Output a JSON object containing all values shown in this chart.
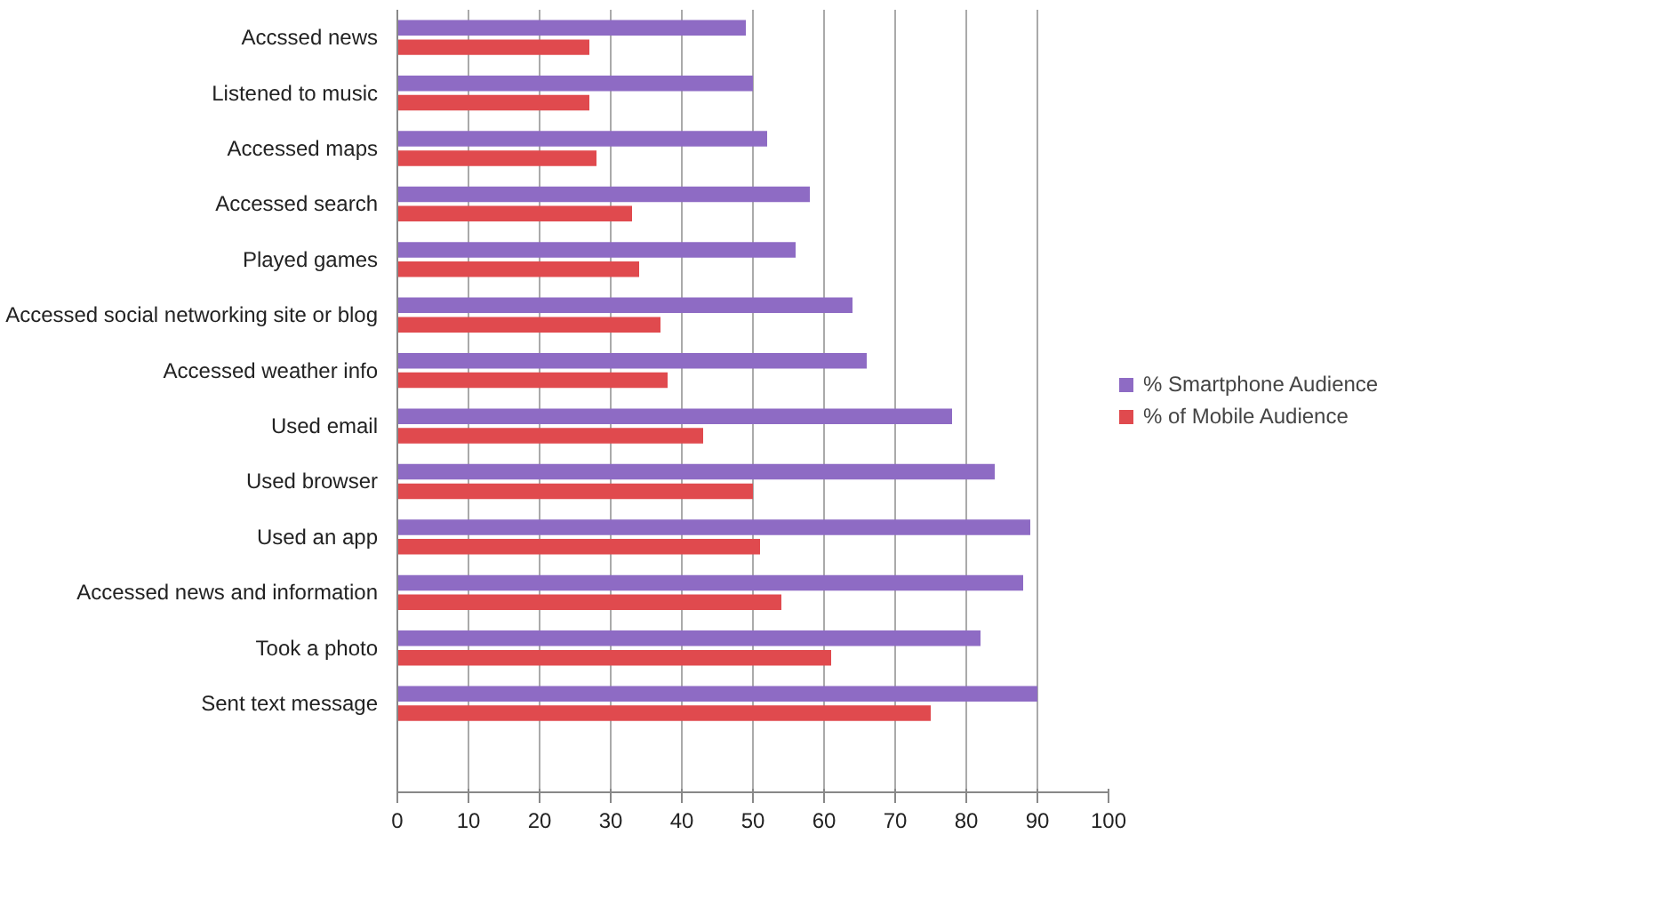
{
  "chart_data": {
    "type": "bar",
    "orientation": "horizontal",
    "categories": [
      "Accssed news",
      "Listened to music",
      "Accessed maps",
      "Accessed search",
      "Played games",
      "Accessed social networking site or blog",
      "Accessed weather info",
      "Used email",
      "Used browser",
      "Used an app",
      "Accessed news and information",
      "Took a photo",
      "Sent text message"
    ],
    "series": [
      {
        "name": "% Smartphone Audience",
        "color": "#8e6bc4",
        "values": [
          49,
          50,
          52,
          58,
          56,
          64,
          66,
          78,
          84,
          89,
          88,
          82,
          90
        ]
      },
      {
        "name": "% of Mobile Audience",
        "color": "#e04a4e",
        "values": [
          27,
          27,
          28,
          33,
          34,
          37,
          38,
          43,
          50,
          51,
          54,
          61,
          75
        ]
      }
    ],
    "xlim": [
      0,
      100
    ],
    "xticks": [
      0,
      10,
      20,
      30,
      40,
      50,
      60,
      70,
      80,
      90,
      100
    ],
    "grid": "x",
    "legend": "right"
  }
}
